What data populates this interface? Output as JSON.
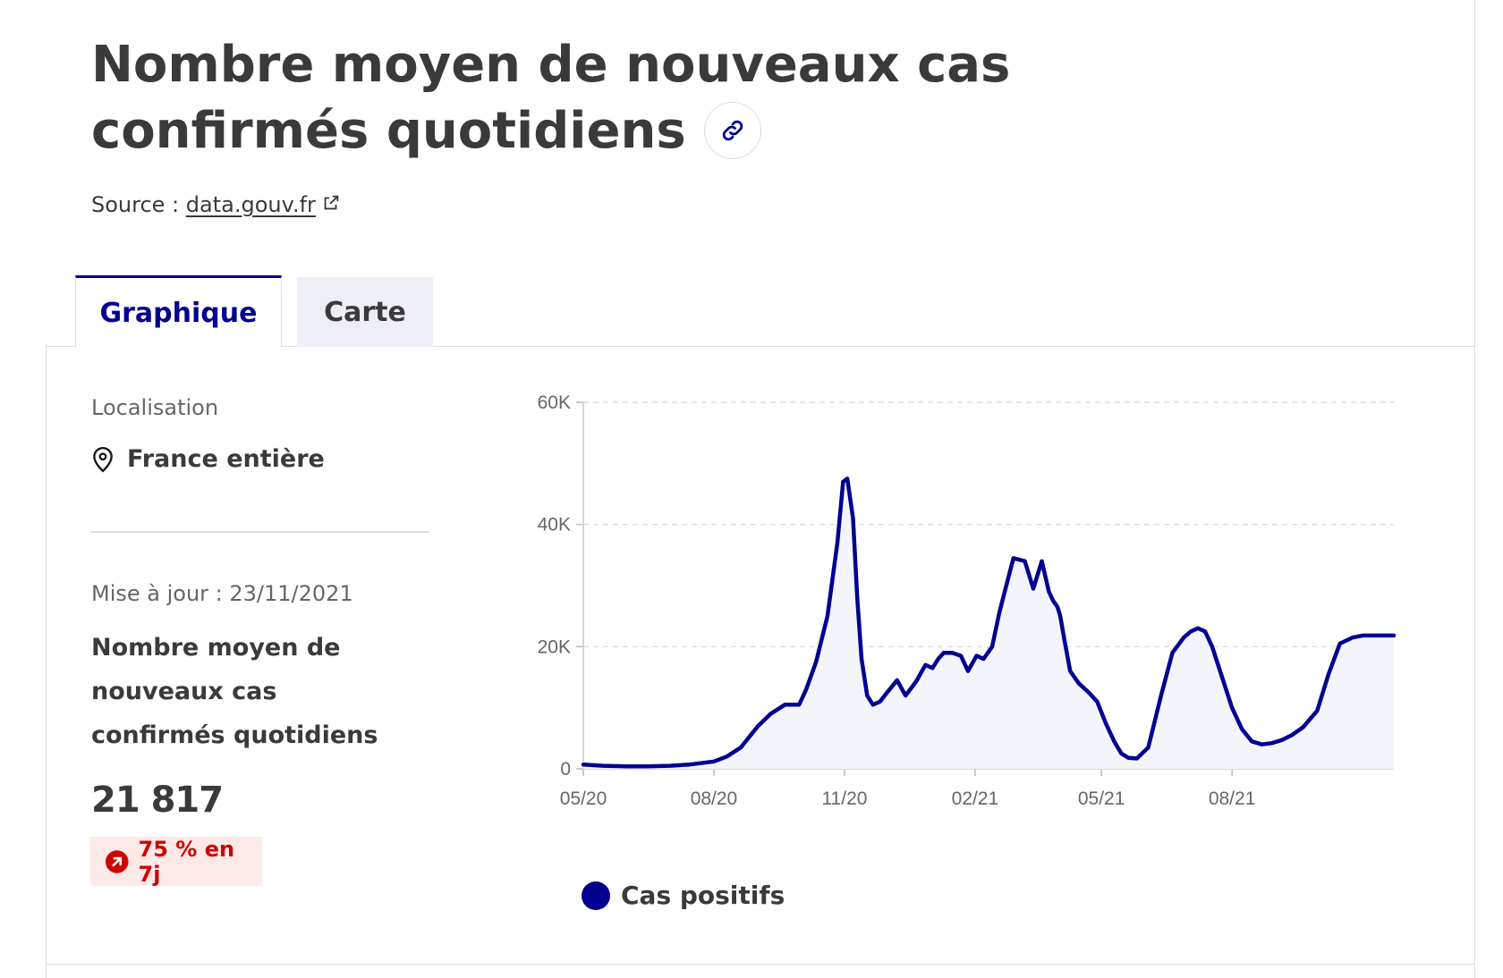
{
  "title": "Nombre moyen de nouveaux cas confirmés quotidiens",
  "source": {
    "label": "Source :",
    "link_text": "data.gouv.fr"
  },
  "tabs": [
    {
      "label": "Graphique",
      "active": true
    },
    {
      "label": "Carte",
      "active": false
    }
  ],
  "sidebar": {
    "location_label": "Localisation",
    "location_value": "France entière",
    "updated": "Mise à jour : 23/11/2021",
    "metric_name": "Nombre moyen de nouveaux cas confirmés quotidiens",
    "metric_value": "21 817",
    "trend": "75 % en 7j"
  },
  "colors": {
    "accent": "#000091",
    "trend_bg": "#fde9e8",
    "trend_text": "#ce0500",
    "area_fill": "#f4f4fb"
  },
  "icons": {
    "title_link": "link-icon",
    "external": "external-link-icon",
    "location": "map-pin-icon",
    "trend": "arrow-up-right-circle-icon"
  },
  "chart_data": {
    "type": "area",
    "x_ticks": [
      "05/20",
      "08/20",
      "11/20",
      "02/21",
      "05/21",
      "08/21"
    ],
    "y_ticks": [
      "0",
      "20K",
      "40K",
      "60K"
    ],
    "ylim": [
      0,
      60000
    ],
    "grid": "horizontal dashed",
    "legend_position": "bottom-left",
    "series": [
      {
        "name": "Cas positifs",
        "color": "#000091",
        "x": [
          "2020-05-01",
          "2020-05-15",
          "2020-06-01",
          "2020-06-15",
          "2020-07-01",
          "2020-07-15",
          "2020-08-01",
          "2020-08-10",
          "2020-08-20",
          "2020-09-01",
          "2020-09-10",
          "2020-09-20",
          "2020-09-30",
          "2020-10-05",
          "2020-10-12",
          "2020-10-20",
          "2020-10-27",
          "2020-10-31",
          "2020-11-03",
          "2020-11-07",
          "2020-11-10",
          "2020-11-13",
          "2020-11-17",
          "2020-11-21",
          "2020-11-26",
          "2020-12-01",
          "2020-12-08",
          "2020-12-14",
          "2020-12-18",
          "2020-12-22",
          "2020-12-28",
          "2021-01-02",
          "2021-01-06",
          "2021-01-10",
          "2021-01-16",
          "2021-01-22",
          "2021-01-27",
          "2021-02-02",
          "2021-02-07",
          "2021-02-13",
          "2021-02-18",
          "2021-02-23",
          "2021-02-28",
          "2021-03-08",
          "2021-03-14",
          "2021-03-20",
          "2021-03-25",
          "2021-03-28",
          "2021-03-31",
          "2021-04-02",
          "2021-04-05",
          "2021-04-09",
          "2021-04-15",
          "2021-04-22",
          "2021-04-28",
          "2021-05-04",
          "2021-05-10",
          "2021-05-15",
          "2021-05-20",
          "2021-05-26",
          "2021-06-03",
          "2021-06-12",
          "2021-06-20",
          "2021-06-28",
          "2021-07-03",
          "2021-07-08",
          "2021-07-13",
          "2021-07-18",
          "2021-07-25",
          "2021-08-01",
          "2021-08-08",
          "2021-08-15",
          "2021-08-22",
          "2021-08-29",
          "2021-09-05",
          "2021-09-12",
          "2021-09-20",
          "2021-09-30",
          "2021-10-08",
          "2021-10-16",
          "2021-10-25",
          "2021-11-01",
          "2021-11-06",
          "2021-11-11",
          "2021-11-16",
          "2021-11-20",
          "2021-11-23"
        ],
        "values": [
          700,
          500,
          400,
          400,
          500,
          700,
          1200,
          2000,
          3500,
          7000,
          9000,
          10500,
          10500,
          13000,
          17500,
          25000,
          37000,
          47000,
          47500,
          41000,
          28000,
          18000,
          12000,
          10500,
          11000,
          12500,
          14500,
          12000,
          13200,
          14500,
          17000,
          16500,
          18000,
          19000,
          19000,
          18500,
          16000,
          18500,
          18000,
          20000,
          25500,
          30000,
          34500,
          34000,
          29500,
          34000,
          29000,
          27500,
          26500,
          25000,
          21000,
          16000,
          14000,
          12500,
          11000,
          7500,
          4500,
          2500,
          1800,
          1700,
          3500,
          12000,
          19000,
          21500,
          22500,
          23000,
          22500,
          20000,
          15000,
          10000,
          6500,
          4500,
          4000,
          4200,
          4700,
          5500,
          6800,
          9500,
          15500,
          20500,
          21500,
          21817,
          21817,
          21817,
          21817,
          21817,
          21817
        ]
      }
    ]
  }
}
